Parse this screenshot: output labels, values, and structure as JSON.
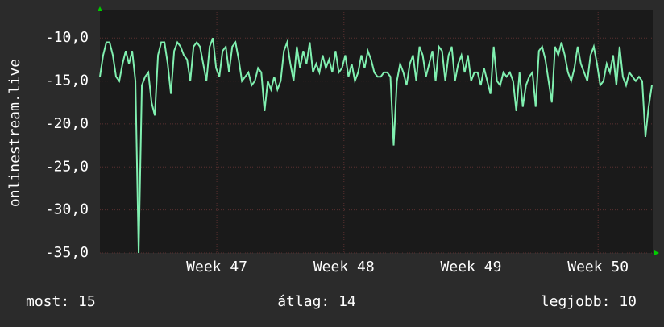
{
  "chart_data": {
    "type": "line",
    "y_label": "onlinestream.live",
    "xlim": [
      46.08,
      50.43
    ],
    "xticks": [
      {
        "value": 47,
        "label": "Week 47"
      },
      {
        "value": 48,
        "label": "Week 48"
      },
      {
        "value": 49,
        "label": "Week 49"
      },
      {
        "value": 50,
        "label": "Week 50"
      }
    ],
    "ylim": [
      -35,
      -6.7
    ],
    "yticks": [
      {
        "value": -10,
        "label": "-10,0"
      },
      {
        "value": -15,
        "label": "-15,0"
      },
      {
        "value": -20,
        "label": "-20,0"
      },
      {
        "value": -25,
        "label": "-25,0"
      },
      {
        "value": -30,
        "label": "-30,0"
      },
      {
        "value": -35,
        "label": "-35,0"
      }
    ],
    "grid": true,
    "series": [
      {
        "color": "#80f0b0",
        "x": [
          46.08,
          46.1054,
          46.1308,
          46.1562,
          46.1816,
          46.207,
          46.2324,
          46.2578,
          46.2832,
          46.3086,
          46.334,
          46.3594,
          46.3848,
          46.4102,
          46.4356,
          46.461,
          46.4864,
          46.5118,
          46.5372,
          46.5626,
          46.588,
          46.6134,
          46.6388,
          46.6642,
          46.6896,
          46.715,
          46.7404,
          46.7658,
          46.7912,
          46.8166,
          46.842,
          46.8674,
          46.8928,
          46.9182,
          46.9436,
          46.969,
          46.9944,
          47.0198,
          47.0452,
          47.0706,
          47.096,
          47.1214,
          47.1468,
          47.1722,
          47.1976,
          47.223,
          47.2484,
          47.2738,
          47.2992,
          47.3246,
          47.35,
          47.3754,
          47.4008,
          47.4262,
          47.4516,
          47.477,
          47.5024,
          47.5278,
          47.5532,
          47.5786,
          47.604,
          47.6294,
          47.6548,
          47.6802,
          47.7056,
          47.731,
          47.7564,
          47.7818,
          47.8072,
          47.8326,
          47.858,
          47.8834,
          47.9088,
          47.9342,
          47.9596,
          47.985,
          48.0104,
          48.0358,
          48.0612,
          48.0866,
          48.112,
          48.1374,
          48.1628,
          48.1882,
          48.2136,
          48.239,
          48.2644,
          48.2898,
          48.3152,
          48.3406,
          48.366,
          48.3914,
          48.4168,
          48.4422,
          48.4676,
          48.493,
          48.5184,
          48.5438,
          48.5692,
          48.5946,
          48.62,
          48.6454,
          48.6708,
          48.6962,
          48.7216,
          48.747,
          48.7724,
          48.7978,
          48.8232,
          48.8486,
          48.874,
          48.8994,
          48.9248,
          48.9502,
          48.9756,
          49.001,
          49.0264,
          49.0518,
          49.0772,
          49.1026,
          49.128,
          49.1534,
          49.1788,
          49.2042,
          49.2296,
          49.255,
          49.2804,
          49.3058,
          49.3312,
          49.3566,
          49.382,
          49.4074,
          49.4328,
          49.4582,
          49.4836,
          49.509,
          49.5344,
          49.5598,
          49.5852,
          49.6106,
          49.636,
          49.6614,
          49.6868,
          49.7122,
          49.7376,
          49.763,
          49.7884,
          49.8138,
          49.8392,
          49.8646,
          49.89,
          49.9154,
          49.9408,
          49.9662,
          49.9916,
          50.017,
          50.0424,
          50.0678,
          50.0932,
          50.1186,
          50.144,
          50.1694,
          50.1948,
          50.2202,
          50.2456,
          50.271,
          50.2964,
          50.3218,
          50.3472,
          50.3726,
          50.398,
          50.4234
        ],
        "values": [
          -14.5,
          -12,
          -10.5,
          -10.5,
          -12,
          -14.5,
          -15,
          -13,
          -11.5,
          -13,
          -11.5,
          -15,
          -35,
          -15.5,
          -14.5,
          -14,
          -17.5,
          -19,
          -12,
          -10.5,
          -10.5,
          -13,
          -16.5,
          -11.5,
          -10.5,
          -11,
          -12,
          -12.5,
          -15,
          -11,
          -10.5,
          -11,
          -13,
          -15,
          -11,
          -10,
          -13.5,
          -14.5,
          -11.5,
          -11,
          -14,
          -11,
          -10.5,
          -12.5,
          -15,
          -14.5,
          -14,
          -15.5,
          -15,
          -13.5,
          -14,
          -18.5,
          -15,
          -16,
          -14.5,
          -16,
          -15,
          -11.5,
          -10.5,
          -13,
          -15,
          -11,
          -13.5,
          -11.5,
          -13,
          -10.5,
          -14,
          -13,
          -14,
          -12,
          -13.5,
          -12.5,
          -14,
          -11.5,
          -14,
          -13.5,
          -12,
          -14.5,
          -13,
          -15,
          -14,
          -12,
          -13.5,
          -11.5,
          -12.5,
          -14,
          -14.5,
          -14.5,
          -14,
          -14,
          -14.5,
          -22.5,
          -15,
          -13,
          -14,
          -15.5,
          -13,
          -12,
          -15,
          -11,
          -12,
          -14.5,
          -13,
          -11.5,
          -15,
          -11,
          -11.5,
          -15,
          -12,
          -11,
          -15,
          -13,
          -12,
          -14,
          -12,
          -15,
          -14,
          -14,
          -15.5,
          -13.5,
          -15,
          -16.5,
          -11,
          -15,
          -15.5,
          -14,
          -14.5,
          -14,
          -15,
          -18.5,
          -14,
          -18,
          -15.5,
          -14.5,
          -14,
          -18,
          -11.5,
          -11,
          -12.5,
          -15,
          -17.5,
          -11,
          -12,
          -10.5,
          -12,
          -14,
          -15,
          -13.5,
          -11,
          -13,
          -14,
          -15,
          -12,
          -11,
          -13,
          -15.5,
          -15,
          -13,
          -14,
          -12,
          -15.5,
          -11,
          -14.5,
          -15.5,
          -14,
          -14.5,
          -15,
          -14.5,
          -15,
          -21.5,
          -18,
          -15.5
        ]
      }
    ],
    "stats": [
      {
        "label": "most:",
        "value": 15
      },
      {
        "label": "átlag:",
        "value": 14
      },
      {
        "label": "legjobb:",
        "value": 10
      }
    ]
  }
}
